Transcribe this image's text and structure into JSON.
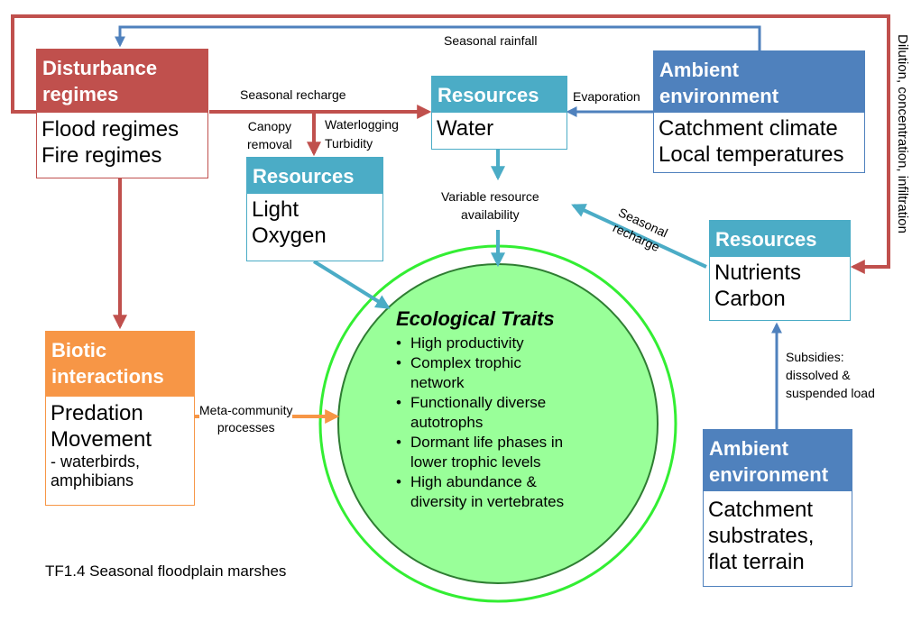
{
  "colors": {
    "disturbance": "#c0504d",
    "resources": "#4bacc6",
    "ambient": "#4f81bd",
    "biotic": "#f79646",
    "circle_fill": "#99ff99",
    "circle_stroke": "#33ee33"
  },
  "boxes": {
    "disturbance": {
      "header": [
        "Disturbance",
        "regimes"
      ],
      "lines": [
        "Flood regimes",
        "Fire regimes"
      ]
    },
    "resources_water": {
      "header": [
        "Resources"
      ],
      "lines": [
        "Water"
      ]
    },
    "ambient_top": {
      "header": [
        "Ambient",
        "environment"
      ],
      "lines": [
        "Catchment climate",
        "Local temperatures"
      ]
    },
    "resources_light": {
      "header": [
        "Resources"
      ],
      "lines": [
        "Light",
        "Oxygen"
      ]
    },
    "resources_nutrients": {
      "header": [
        "Resources"
      ],
      "lines": [
        "Nutrients",
        "Carbon"
      ]
    },
    "biotic": {
      "header": [
        "Biotic",
        "interactions"
      ],
      "lines": [
        "Predation",
        "Movement"
      ],
      "sublines": [
        "- waterbirds,",
        "amphibians"
      ]
    },
    "ambient_bottom": {
      "header": [
        "Ambient",
        "environment"
      ],
      "lines": [
        "Catchment",
        "substrates,",
        "flat terrain"
      ]
    }
  },
  "traits": {
    "title": "Ecological Traits",
    "items": [
      [
        "High productivity"
      ],
      [
        "Complex trophic",
        "network"
      ],
      [
        "Functionally diverse",
        "autotrophs"
      ],
      [
        "Dormant life phases in",
        "lower trophic levels"
      ],
      [
        "High abundance &",
        "diversity in vertebrates"
      ]
    ]
  },
  "labels": {
    "seasonal_rainfall": "Seasonal rainfall",
    "seasonal_recharge": "Seasonal recharge",
    "canopy_removal": [
      "Canopy",
      "removal"
    ],
    "waterlogging": "Waterlogging",
    "turbidity": "Turbidity",
    "evaporation": "Evaporation",
    "variable_resource": [
      "Variable resource",
      "availability"
    ],
    "seasonal_recharge_diag": [
      "Seasonal",
      "recharge"
    ],
    "dilution": "Dilution, concentration, infiltration",
    "subsidies": [
      "Subsidies:",
      "dissolved &",
      "suspended load"
    ],
    "meta_community": [
      "Meta-community",
      "processes"
    ]
  },
  "caption": "TF1.4 Seasonal floodplain marshes"
}
